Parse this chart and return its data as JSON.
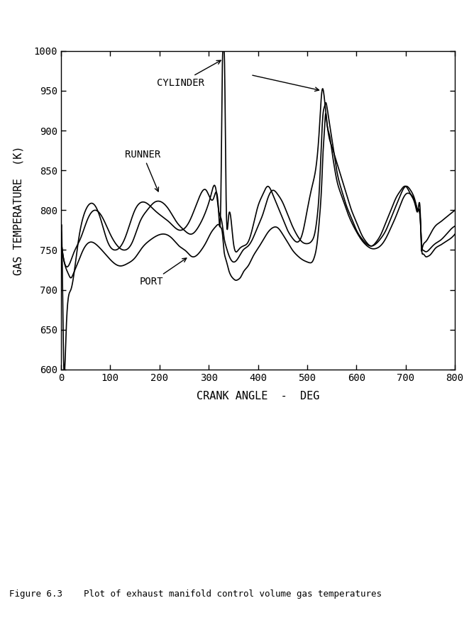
{
  "title": "",
  "xlabel": "CRANK ANGLE  -  DEG",
  "ylabel": "GAS TEMPERATURE  (K)",
  "xlim": [
    0,
    800
  ],
  "ylim": [
    600,
    1000
  ],
  "xticks": [
    0,
    100,
    200,
    300,
    400,
    500,
    600,
    700,
    800
  ],
  "yticks": [
    600,
    650,
    700,
    750,
    800,
    850,
    900,
    950,
    1000
  ],
  "line_color": "#000000",
  "bg_color": "#ffffff",
  "caption": "Figure 6.3    Plot of exhaust manifold control volume gas temperatures",
  "figsize": [
    6.61,
    8.98
  ],
  "dpi": 100
}
